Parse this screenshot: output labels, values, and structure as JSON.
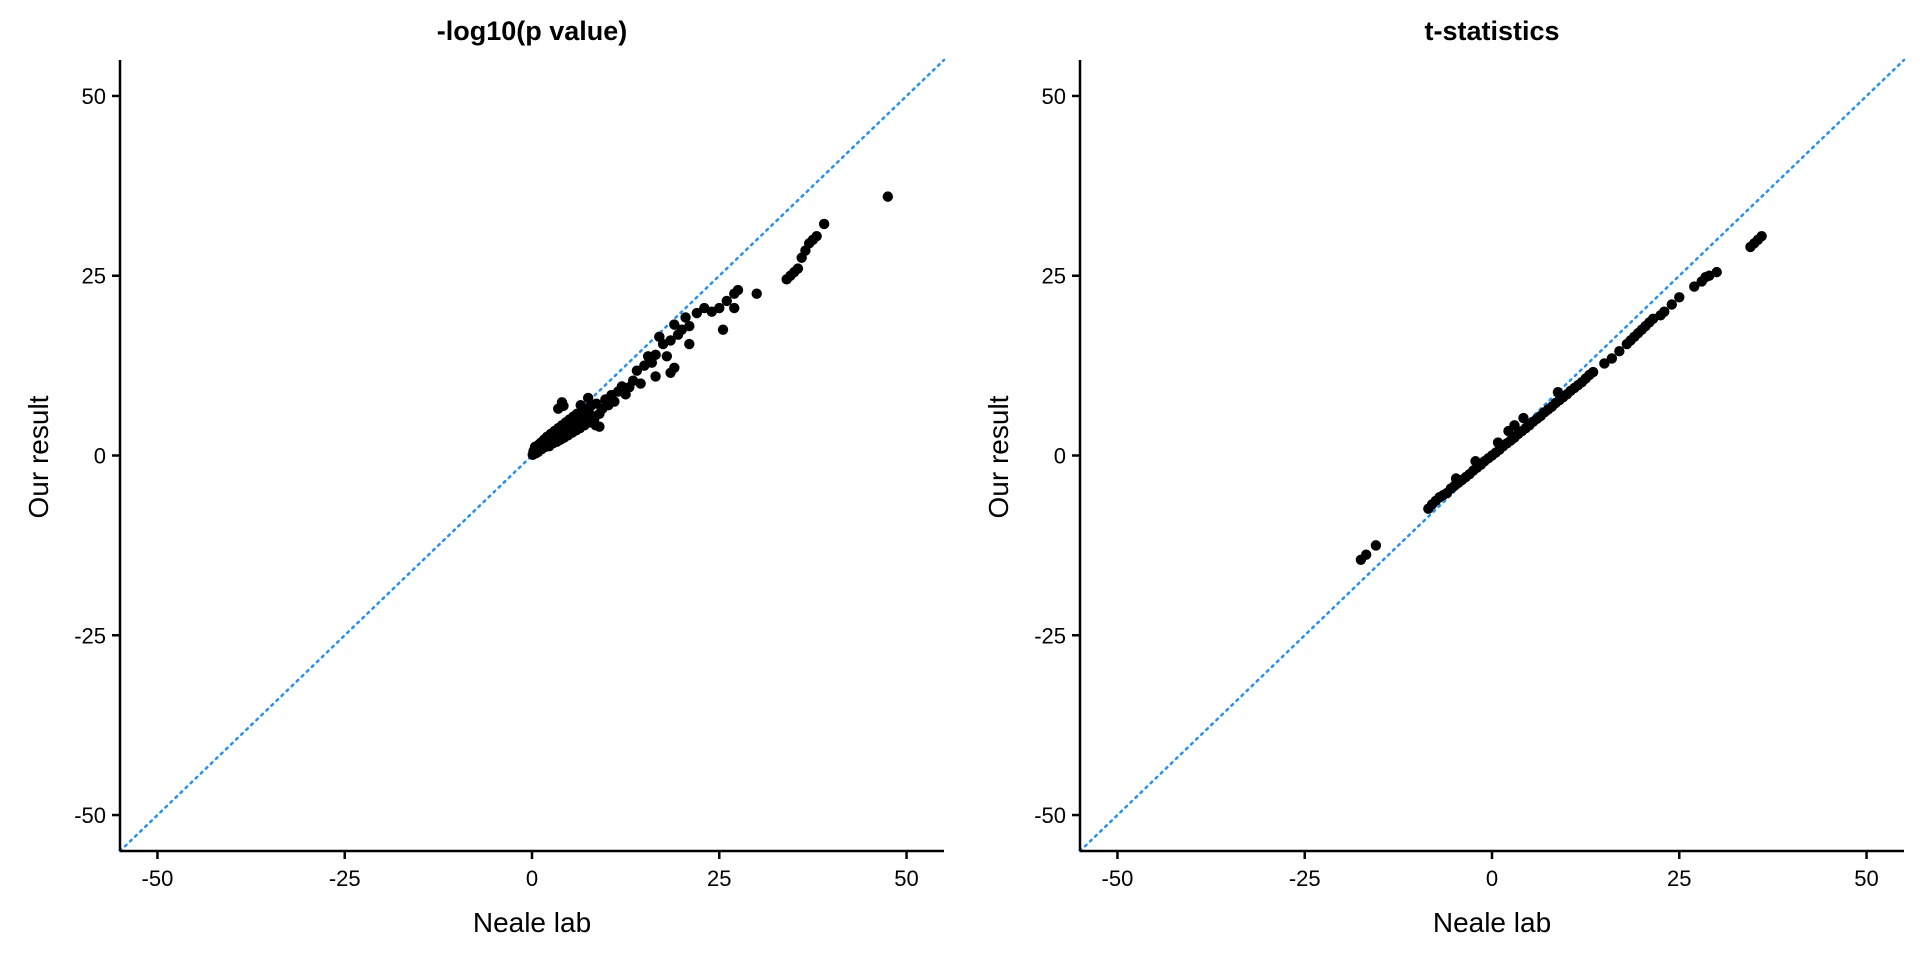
{
  "colors": {
    "points": "#000000",
    "reference_line": "#1E90FF",
    "background": "#FFFFFF",
    "axes": "#000000"
  },
  "chart_data": [
    {
      "type": "scatter",
      "title": "-log10(p value)",
      "xlabel": "Neale lab",
      "ylabel": "Our result",
      "xlim": [
        -55,
        55
      ],
      "ylim": [
        -55,
        55
      ],
      "xticks": [
        -50,
        -25,
        0,
        25,
        50
      ],
      "yticks": [
        -50,
        -25,
        0,
        25,
        50
      ],
      "xtick_labels": [
        "-50",
        "-25",
        "0",
        "25",
        "50"
      ],
      "ytick_labels": [
        "-50",
        "-25",
        "0",
        "25",
        "50"
      ],
      "reference_line": {
        "type": "identity",
        "style": "dotted",
        "color": "#1E90FF"
      },
      "grid": false,
      "legend": "none",
      "series": [
        {
          "points": [
            [
              0.1,
              0.1
            ],
            [
              0.2,
              0.6
            ],
            [
              0.3,
              0.4
            ],
            [
              0.4,
              1.2
            ],
            [
              0.5,
              0.3
            ],
            [
              0.6,
              0.9
            ],
            [
              0.8,
              0.5
            ],
            [
              0.9,
              1.5
            ],
            [
              1.0,
              0.8
            ],
            [
              1.2,
              1.8
            ],
            [
              1.3,
              0.9
            ],
            [
              1.5,
              1.4
            ],
            [
              1.6,
              2.2
            ],
            [
              1.8,
              1.2
            ],
            [
              2.0,
              2.6
            ],
            [
              2.1,
              1.6
            ],
            [
              2.3,
              1.3
            ],
            [
              2.5,
              3.0
            ],
            [
              2.6,
              2.0
            ],
            [
              2.8,
              1.7
            ],
            [
              3.0,
              3.4
            ],
            [
              3.1,
              2.4
            ],
            [
              3.3,
              1.9
            ],
            [
              3.5,
              3.8
            ],
            [
              3.6,
              2.7
            ],
            [
              3.8,
              2.2
            ],
            [
              4.0,
              4.2
            ],
            [
              4.1,
              3.0
            ],
            [
              4.3,
              2.5
            ],
            [
              4.5,
              4.6
            ],
            [
              4.6,
              3.4
            ],
            [
              4.8,
              2.8
            ],
            [
              5.0,
              5.0
            ],
            [
              5.2,
              3.7
            ],
            [
              5.4,
              3.2
            ],
            [
              5.5,
              5.4
            ],
            [
              5.7,
              4.0
            ],
            [
              5.9,
              3.5
            ],
            [
              6.0,
              5.8
            ],
            [
              6.2,
              4.4
            ],
            [
              6.4,
              3.8
            ],
            [
              6.6,
              6.1
            ],
            [
              6.8,
              4.8
            ],
            [
              7.0,
              4.2
            ],
            [
              7.2,
              6.4
            ],
            [
              7.4,
              5.1
            ],
            [
              7.6,
              4.6
            ],
            [
              7.8,
              6.8
            ],
            [
              8.0,
              5.5
            ],
            [
              8.3,
              5.0
            ],
            [
              8.6,
              7.2
            ],
            [
              9.0,
              5.8
            ],
            [
              9.4,
              6.5
            ],
            [
              9.8,
              7.8
            ],
            [
              10.2,
              7.0
            ],
            [
              10.6,
              8.4
            ],
            [
              11.0,
              7.5
            ],
            [
              11.5,
              8.9
            ],
            [
              12.0,
              9.6
            ],
            [
              3.5,
              6.5
            ],
            [
              4.0,
              7.4
            ],
            [
              4.2,
              6.9
            ],
            [
              6.5,
              7.0
            ],
            [
              7.5,
              8.0
            ],
            [
              8.5,
              4.2
            ],
            [
              9.0,
              4.0
            ],
            [
              12.5,
              8.5
            ],
            [
              13.0,
              9.5
            ],
            [
              13.5,
              10.4
            ],
            [
              14.0,
              11.8
            ],
            [
              14.5,
              10.0
            ],
            [
              15.0,
              12.5
            ],
            [
              15.5,
              13.8
            ],
            [
              16.0,
              12.9
            ],
            [
              16.5,
              14.0
            ],
            [
              17.0,
              16.5
            ],
            [
              17.5,
              15.5
            ],
            [
              18.0,
              13.8
            ],
            [
              18.5,
              16.0
            ],
            [
              19.0,
              18.2
            ],
            [
              19.5,
              16.8
            ],
            [
              20.0,
              17.5
            ],
            [
              20.5,
              19.2
            ],
            [
              21.0,
              18.0
            ],
            [
              22.0,
              19.8
            ],
            [
              23.0,
              20.5
            ],
            [
              24.0,
              20.0
            ],
            [
              25.0,
              20.5
            ],
            [
              26.0,
              21.5
            ],
            [
              27.0,
              22.5
            ],
            [
              27.5,
              23.0
            ],
            [
              25.5,
              17.5
            ],
            [
              30.0,
              22.5
            ],
            [
              27.0,
              20.5
            ],
            [
              16.5,
              11.0
            ],
            [
              19.0,
              12.2
            ],
            [
              21.0,
              15.5
            ],
            [
              18.5,
              11.5
            ],
            [
              34.0,
              24.5
            ],
            [
              34.5,
              25.0
            ],
            [
              35.0,
              25.5
            ],
            [
              35.5,
              26.0
            ],
            [
              36.0,
              27.5
            ],
            [
              36.5,
              28.5
            ],
            [
              37.0,
              29.5
            ],
            [
              37.5,
              30.0
            ],
            [
              38.0,
              30.5
            ],
            [
              39.0,
              32.2
            ],
            [
              47.5,
              36.0
            ]
          ]
        }
      ]
    },
    {
      "type": "scatter",
      "title": "t-statistics",
      "xlabel": "Neale lab",
      "ylabel": "Our result",
      "xlim": [
        -55,
        55
      ],
      "ylim": [
        -55,
        55
      ],
      "xticks": [
        -50,
        -25,
        0,
        25,
        50
      ],
      "yticks": [
        -50,
        -25,
        0,
        25,
        50
      ],
      "xtick_labels": [
        "-50",
        "-25",
        "0",
        "25",
        "50"
      ],
      "ytick_labels": [
        "-50",
        "-25",
        "0",
        "25",
        "50"
      ],
      "reference_line": {
        "type": "identity",
        "style": "dotted",
        "color": "#1E90FF"
      },
      "grid": false,
      "legend": "none",
      "series": [
        {
          "points": [
            [
              -17.5,
              -14.5
            ],
            [
              -16.8,
              -13.8
            ],
            [
              -15.5,
              -12.5
            ],
            [
              -8.5,
              -7.4
            ],
            [
              -8.0,
              -6.8
            ],
            [
              -7.5,
              -6.3
            ],
            [
              -7.0,
              -5.8
            ],
            [
              -6.5,
              -5.5
            ],
            [
              -6.0,
              -5.2
            ],
            [
              -5.5,
              -4.6
            ],
            [
              -5.0,
              -4.2
            ],
            [
              -4.5,
              -3.8
            ],
            [
              -4.0,
              -3.4
            ],
            [
              -3.5,
              -3.0
            ],
            [
              -3.0,
              -2.6
            ],
            [
              -2.5,
              -2.1
            ],
            [
              -2.0,
              -1.7
            ],
            [
              -1.5,
              -1.3
            ],
            [
              -1.0,
              -0.8
            ],
            [
              -0.5,
              -0.4
            ],
            [
              0.0,
              0.0
            ],
            [
              0.5,
              0.4
            ],
            [
              1.0,
              0.8
            ],
            [
              1.5,
              1.3
            ],
            [
              2.0,
              1.7
            ],
            [
              2.5,
              2.1
            ],
            [
              3.0,
              2.5
            ],
            [
              3.5,
              3.0
            ],
            [
              4.0,
              3.4
            ],
            [
              4.5,
              3.8
            ],
            [
              5.0,
              4.2
            ],
            [
              5.5,
              4.7
            ],
            [
              6.0,
              5.1
            ],
            [
              6.5,
              5.5
            ],
            [
              7.0,
              6.0
            ],
            [
              7.5,
              6.4
            ],
            [
              8.0,
              6.8
            ],
            [
              8.5,
              7.3
            ],
            [
              9.0,
              7.7
            ],
            [
              9.5,
              8.1
            ],
            [
              10.0,
              8.5
            ],
            [
              10.5,
              9.0
            ],
            [
              11.0,
              9.4
            ],
            [
              11.5,
              9.8
            ],
            [
              12.0,
              10.2
            ],
            [
              12.5,
              10.7
            ],
            [
              13.0,
              11.2
            ],
            [
              13.5,
              11.6
            ],
            [
              -4.8,
              -3.2
            ],
            [
              -2.2,
              -0.8
            ],
            [
              0.8,
              1.8
            ],
            [
              2.2,
              3.4
            ],
            [
              3.0,
              4.2
            ],
            [
              4.2,
              5.2
            ],
            [
              8.8,
              8.8
            ],
            [
              15.0,
              12.8
            ],
            [
              16.0,
              13.5
            ],
            [
              17.0,
              14.5
            ],
            [
              18.0,
              15.5
            ],
            [
              18.5,
              16.0
            ],
            [
              19.0,
              16.5
            ],
            [
              19.5,
              17.0
            ],
            [
              20.0,
              17.5
            ],
            [
              20.5,
              18.0
            ],
            [
              21.0,
              18.5
            ],
            [
              21.5,
              19.0
            ],
            [
              22.5,
              19.5
            ],
            [
              23.0,
              20.0
            ],
            [
              24.0,
              21.0
            ],
            [
              25.0,
              22.0
            ],
            [
              27.0,
              23.5
            ],
            [
              28.0,
              24.2
            ],
            [
              28.5,
              24.8
            ],
            [
              29.0,
              25.0
            ],
            [
              30.0,
              25.5
            ],
            [
              34.5,
              29.0
            ],
            [
              35.0,
              29.5
            ],
            [
              35.5,
              30.0
            ],
            [
              36.0,
              30.5
            ]
          ]
        }
      ]
    }
  ]
}
